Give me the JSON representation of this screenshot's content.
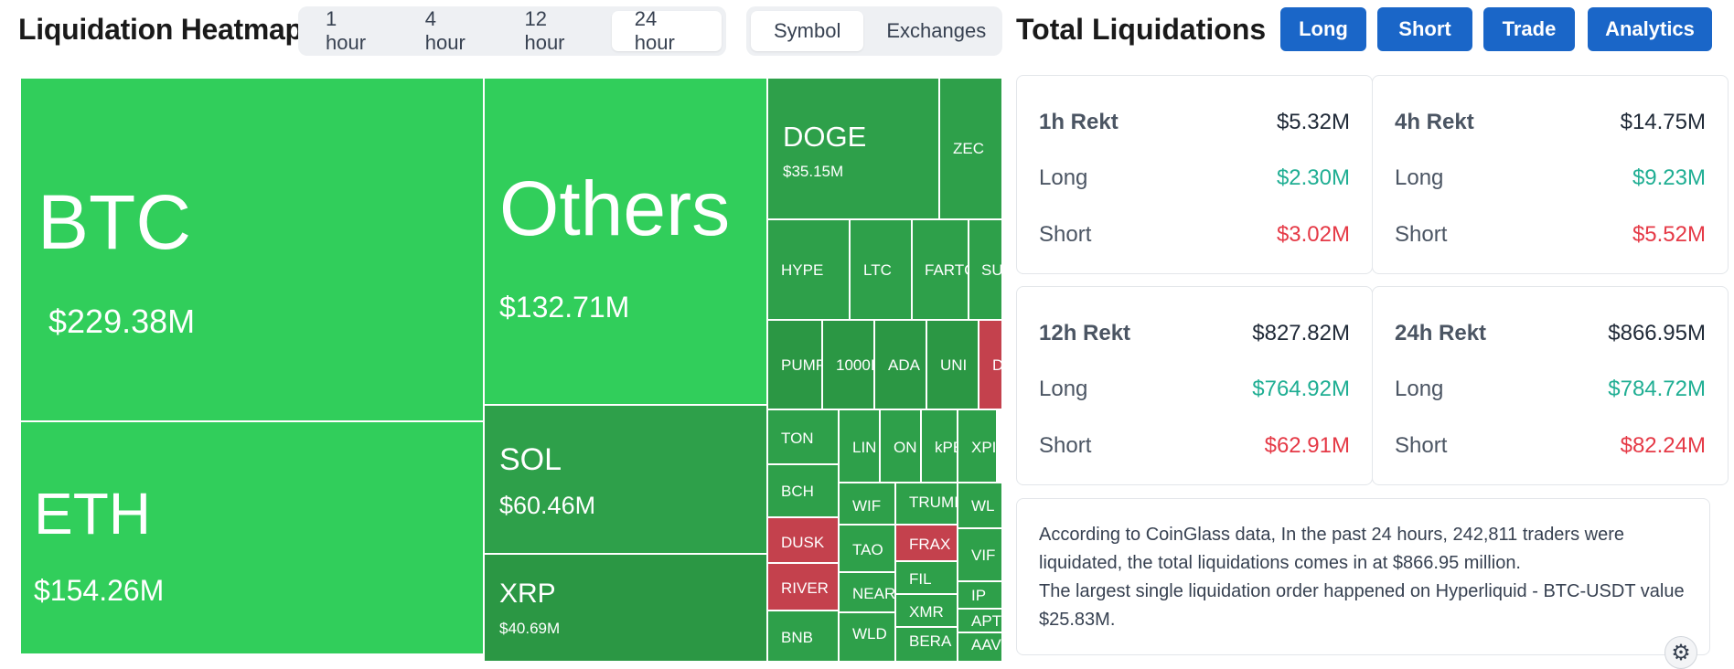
{
  "header": {
    "title": "Liquidation Heatmap",
    "time_tabs": [
      "1 hour",
      "4 hour",
      "12 hour",
      "24 hour"
    ],
    "active_time_tab": "24 hour",
    "view_tabs": [
      "Symbol",
      "Exchanges"
    ],
    "active_view_tab": "Symbol",
    "right_title": "Total Liquidations",
    "buttons": [
      "Long",
      "Short",
      "Trade",
      "Analytics"
    ]
  },
  "heatmap": [
    {
      "symbol": "BTC",
      "value": "$229.38M",
      "side": "long"
    },
    {
      "symbol": "ETH",
      "value": "$154.26M",
      "side": "long"
    },
    {
      "symbol": "Others",
      "value": "$132.71M",
      "side": "long"
    },
    {
      "symbol": "SOL",
      "value": "$60.46M",
      "side": "long"
    },
    {
      "symbol": "XRP",
      "value": "$40.69M",
      "side": "long"
    },
    {
      "symbol": "DOGE",
      "value": "$35.15M",
      "side": "long"
    },
    {
      "symbol": "ZEC",
      "value": "",
      "side": "long"
    },
    {
      "symbol": "HYPE",
      "value": "",
      "side": "long"
    },
    {
      "symbol": "LTC",
      "value": "",
      "side": "long"
    },
    {
      "symbol": "FARTC",
      "value": "",
      "side": "long"
    },
    {
      "symbol": "SU",
      "value": "",
      "side": "long"
    },
    {
      "symbol": "PUMP",
      "value": "",
      "side": "long"
    },
    {
      "symbol": "1000I",
      "value": "",
      "side": "long"
    },
    {
      "symbol": "ADA",
      "value": "",
      "side": "long"
    },
    {
      "symbol": "UNI",
      "value": "",
      "side": "long"
    },
    {
      "symbol": "D",
      "value": "",
      "side": "short"
    },
    {
      "symbol": "TON",
      "value": "",
      "side": "long"
    },
    {
      "symbol": "LIN",
      "value": "",
      "side": "long"
    },
    {
      "symbol": "ON",
      "value": "",
      "side": "long"
    },
    {
      "symbol": "kPE",
      "value": "",
      "side": "long"
    },
    {
      "symbol": "XPI",
      "value": "",
      "side": "long"
    },
    {
      "symbol": "BCH",
      "value": "",
      "side": "long"
    },
    {
      "symbol": "WIF",
      "value": "",
      "side": "long"
    },
    {
      "symbol": "TRUMI",
      "value": "",
      "side": "long"
    },
    {
      "symbol": "WL",
      "value": "",
      "side": "long"
    },
    {
      "symbol": "DUSK",
      "value": "",
      "side": "short"
    },
    {
      "symbol": "TAO",
      "value": "",
      "side": "long"
    },
    {
      "symbol": "FRAX",
      "value": "",
      "side": "short"
    },
    {
      "symbol": "VIF",
      "value": "",
      "side": "long"
    },
    {
      "symbol": "RIVER",
      "value": "",
      "side": "short"
    },
    {
      "symbol": "NEAR",
      "value": "",
      "side": "long"
    },
    {
      "symbol": "FIL",
      "value": "",
      "side": "long"
    },
    {
      "symbol": "XMR",
      "value": "",
      "side": "long"
    },
    {
      "symbol": "IP",
      "value": "",
      "side": "long"
    },
    {
      "symbol": "APT",
      "value": "",
      "side": "long"
    },
    {
      "symbol": "BNB",
      "value": "",
      "side": "long"
    },
    {
      "symbol": "WLD",
      "value": "",
      "side": "long"
    },
    {
      "symbol": "BERA",
      "value": "",
      "side": "long"
    },
    {
      "symbol": "AAV",
      "value": "",
      "side": "long"
    }
  ],
  "stats": {
    "h1": {
      "label": "1h Rekt",
      "total": "$5.32M",
      "long_label": "Long",
      "long": "$2.30M",
      "short_label": "Short",
      "short": "$3.02M"
    },
    "h4": {
      "label": "4h Rekt",
      "total": "$14.75M",
      "long_label": "Long",
      "long": "$9.23M",
      "short_label": "Short",
      "short": "$5.52M"
    },
    "h12": {
      "label": "12h Rekt",
      "total": "$827.82M",
      "long_label": "Long",
      "long": "$764.92M",
      "short_label": "Short",
      "short": "$62.91M"
    },
    "h24": {
      "label": "24h Rekt",
      "total": "$866.95M",
      "long_label": "Long",
      "long": "$784.72M",
      "short_label": "Short",
      "short": "$82.24M"
    }
  },
  "summary": {
    "line1": "According to CoinGlass data, In the past 24 hours, 242,811 traders were liquidated, the total liquidations comes in at $866.95 million.",
    "line2": "The largest single liquidation order happened on Hyperliquid - BTC-USDT value $25.83M."
  },
  "icons": {
    "settings": "gear-icon"
  },
  "colors": {
    "long_green": "#31ce5b",
    "long_green_dark": "#2ea04a",
    "short_red": "#c4414d",
    "accent_blue": "#1a66c8",
    "long_text": "#1fae93",
    "short_text": "#e53946"
  }
}
